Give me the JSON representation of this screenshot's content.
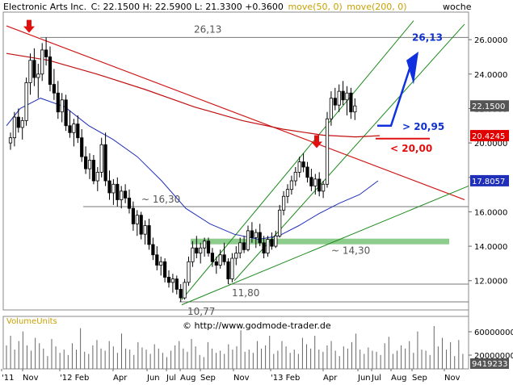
{
  "header": {
    "symbol": "Electronic Arts Inc.",
    "ohlc": "C: 22.1500  H: 22.5900  L: 21.3300 +0.3600",
    "ma50": "move(50, 0)",
    "ma200": "move(200, 0)",
    "interval": "woche"
  },
  "watermark": "© http://www.godmode-trader.de",
  "volume_title": "VolumeUnits",
  "colors": {
    "candle_up": "#ffffff",
    "candle_down": "#000000",
    "ma50": "#1f2fb8",
    "ma200": "#c01010",
    "trendline_red": "#d01818",
    "channel": "#1a8a1a",
    "support_zone": "#7fc77f",
    "arrow_down": "#e01010",
    "arrow_up": "#1030e0",
    "target_blue": "#1030d0",
    "target_red": "#e01010"
  },
  "chart_data": {
    "type": "candlestick",
    "title": "Electronic Arts Inc.",
    "interval": "woche",
    "x_ticks": [
      "'11",
      "Nov",
      "'12 Feb",
      "Apr",
      "Jun",
      "Jul",
      "Aug",
      "Sep",
      "Nov",
      "'13 Feb",
      "Apr",
      "Jun",
      "Jul",
      "Aug",
      "Sep",
      "Nov"
    ],
    "y_ticks": [
      "26.0000",
      "24.0000",
      "22.0000",
      "20.0000",
      "18.0000",
      "16.0000",
      "14.0000",
      "12.0000"
    ],
    "ylim": [
      10.3,
      27.6
    ],
    "last_price": "22.1500",
    "ma200_value": "20.4245",
    "ma50_value": "17.8057",
    "levels": [
      {
        "label": "26,13",
        "value": 26.13
      },
      {
        "label": "~ 16,30",
        "value": 16.3
      },
      {
        "label": "~ 14,30",
        "value": 14.3
      },
      {
        "label": "11,80",
        "value": 11.8
      },
      {
        "label": "10,77",
        "value": 10.77
      }
    ],
    "targets": [
      {
        "label": "26,13",
        "value": 26.13,
        "color": "blue"
      },
      {
        "label": "> 20,95",
        "value": 20.95,
        "color": "blue"
      },
      {
        "label": "< 20,00",
        "value": 20.0,
        "color": "red"
      }
    ],
    "volume": {
      "y_ticks": [
        "60000000",
        "20000000"
      ],
      "last_value": "9419233",
      "values": [
        22,
        31,
        18,
        26,
        35,
        22,
        17,
        29,
        24,
        19,
        12,
        28,
        21,
        15,
        18,
        13,
        24,
        18,
        38,
        16,
        14,
        22,
        27,
        19,
        17,
        26,
        21,
        15,
        33,
        19,
        18,
        13,
        25,
        20,
        18,
        14,
        23,
        19,
        15,
        11,
        17,
        22,
        26,
        19,
        16,
        28,
        21,
        13,
        11,
        25,
        19,
        15,
        17,
        14,
        23,
        18,
        21,
        36,
        16,
        18,
        15,
        26,
        19,
        22,
        31,
        14,
        17,
        26,
        21,
        15,
        18,
        14,
        29,
        23,
        19,
        31,
        18,
        16,
        22,
        26,
        17,
        12,
        21,
        19,
        25,
        33,
        18,
        14,
        20,
        17,
        16,
        13,
        24,
        30,
        14,
        17,
        22,
        19,
        26,
        15,
        35,
        18,
        17,
        13,
        40,
        21,
        29,
        18,
        25,
        12,
        27,
        14
      ]
    },
    "weekly": [
      {
        "o": 20.0,
        "h": 20.6,
        "l": 19.6,
        "c": 20.3
      },
      {
        "o": 20.3,
        "h": 21.8,
        "l": 19.8,
        "c": 21.5
      },
      {
        "o": 21.5,
        "h": 22.0,
        "l": 20.6,
        "c": 20.9
      },
      {
        "o": 20.9,
        "h": 21.5,
        "l": 20.2,
        "c": 21.3
      },
      {
        "o": 21.3,
        "h": 23.8,
        "l": 21.0,
        "c": 23.5
      },
      {
        "o": 23.5,
        "h": 25.2,
        "l": 22.8,
        "c": 24.8
      },
      {
        "o": 24.8,
        "h": 25.5,
        "l": 23.3,
        "c": 23.8
      },
      {
        "o": 23.8,
        "h": 24.6,
        "l": 22.6,
        "c": 24.0
      },
      {
        "o": 24.0,
        "h": 25.8,
        "l": 23.6,
        "c": 25.4
      },
      {
        "o": 25.4,
        "h": 26.13,
        "l": 24.5,
        "c": 25.0
      },
      {
        "o": 25.0,
        "h": 25.6,
        "l": 23.0,
        "c": 23.4
      },
      {
        "o": 23.4,
        "h": 24.3,
        "l": 22.5,
        "c": 22.9
      },
      {
        "o": 22.9,
        "h": 23.6,
        "l": 21.4,
        "c": 21.8
      },
      {
        "o": 21.8,
        "h": 22.9,
        "l": 21.2,
        "c": 22.5
      },
      {
        "o": 22.5,
        "h": 22.8,
        "l": 20.7,
        "c": 21.0
      },
      {
        "o": 21.0,
        "h": 21.9,
        "l": 20.3,
        "c": 20.6
      },
      {
        "o": 20.6,
        "h": 21.4,
        "l": 19.8,
        "c": 21.1
      },
      {
        "o": 21.1,
        "h": 21.6,
        "l": 20.0,
        "c": 20.3
      },
      {
        "o": 20.3,
        "h": 20.8,
        "l": 18.9,
        "c": 19.2
      },
      {
        "o": 19.2,
        "h": 19.8,
        "l": 18.2,
        "c": 18.5
      },
      {
        "o": 18.5,
        "h": 19.4,
        "l": 17.9,
        "c": 19.0
      },
      {
        "o": 19.0,
        "h": 19.3,
        "l": 17.6,
        "c": 17.8
      },
      {
        "o": 17.8,
        "h": 18.6,
        "l": 17.2,
        "c": 18.3
      },
      {
        "o": 18.3,
        "h": 20.3,
        "l": 18.0,
        "c": 19.9
      },
      {
        "o": 19.9,
        "h": 20.6,
        "l": 17.5,
        "c": 17.8
      },
      {
        "o": 17.8,
        "h": 18.4,
        "l": 16.7,
        "c": 17.1
      },
      {
        "o": 17.1,
        "h": 17.9,
        "l": 16.4,
        "c": 17.6
      },
      {
        "o": 17.6,
        "h": 18.0,
        "l": 16.3,
        "c": 16.7
      },
      {
        "o": 16.7,
        "h": 17.5,
        "l": 16.2,
        "c": 17.2
      },
      {
        "o": 17.2,
        "h": 17.6,
        "l": 16.5,
        "c": 16.8
      },
      {
        "o": 16.8,
        "h": 17.3,
        "l": 15.9,
        "c": 16.2
      },
      {
        "o": 16.2,
        "h": 16.6,
        "l": 14.9,
        "c": 15.3
      },
      {
        "o": 15.3,
        "h": 16.1,
        "l": 14.6,
        "c": 15.8
      },
      {
        "o": 15.8,
        "h": 16.0,
        "l": 14.4,
        "c": 14.7
      },
      {
        "o": 14.7,
        "h": 15.5,
        "l": 14.1,
        "c": 15.2
      },
      {
        "o": 15.2,
        "h": 15.6,
        "l": 13.8,
        "c": 14.1
      },
      {
        "o": 14.1,
        "h": 14.5,
        "l": 13.2,
        "c": 13.5
      },
      {
        "o": 13.5,
        "h": 14.0,
        "l": 12.6,
        "c": 12.9
      },
      {
        "o": 12.9,
        "h": 13.4,
        "l": 12.3,
        "c": 13.1
      },
      {
        "o": 13.1,
        "h": 13.3,
        "l": 11.9,
        "c": 12.2
      },
      {
        "o": 12.2,
        "h": 12.6,
        "l": 11.6,
        "c": 11.9
      },
      {
        "o": 11.9,
        "h": 12.4,
        "l": 11.3,
        "c": 12.1
      },
      {
        "o": 12.1,
        "h": 12.3,
        "l": 11.2,
        "c": 11.5
      },
      {
        "o": 11.5,
        "h": 11.8,
        "l": 10.77,
        "c": 11.0
      },
      {
        "o": 11.0,
        "h": 12.1,
        "l": 10.9,
        "c": 11.9
      },
      {
        "o": 11.9,
        "h": 13.4,
        "l": 11.7,
        "c": 13.1
      },
      {
        "o": 13.1,
        "h": 14.3,
        "l": 12.8,
        "c": 13.9
      },
      {
        "o": 13.9,
        "h": 14.6,
        "l": 13.3,
        "c": 13.6
      },
      {
        "o": 13.6,
        "h": 14.2,
        "l": 13.0,
        "c": 13.9
      },
      {
        "o": 13.9,
        "h": 14.5,
        "l": 13.4,
        "c": 14.3
      },
      {
        "o": 14.3,
        "h": 14.5,
        "l": 13.4,
        "c": 13.6
      },
      {
        "o": 13.6,
        "h": 13.9,
        "l": 12.8,
        "c": 13.1
      },
      {
        "o": 13.1,
        "h": 13.4,
        "l": 12.4,
        "c": 12.9
      },
      {
        "o": 12.9,
        "h": 13.8,
        "l": 12.7,
        "c": 13.5
      },
      {
        "o": 13.5,
        "h": 14.2,
        "l": 12.9,
        "c": 13.1
      },
      {
        "o": 13.1,
        "h": 13.3,
        "l": 11.8,
        "c": 12.1
      },
      {
        "o": 12.1,
        "h": 13.6,
        "l": 11.9,
        "c": 13.3
      },
      {
        "o": 13.3,
        "h": 14.0,
        "l": 12.9,
        "c": 13.6
      },
      {
        "o": 13.6,
        "h": 14.5,
        "l": 13.3,
        "c": 14.2
      },
      {
        "o": 14.2,
        "h": 14.6,
        "l": 13.6,
        "c": 13.8
      },
      {
        "o": 13.8,
        "h": 15.2,
        "l": 13.7,
        "c": 14.9
      },
      {
        "o": 14.9,
        "h": 15.4,
        "l": 14.2,
        "c": 14.5
      },
      {
        "o": 14.5,
        "h": 15.0,
        "l": 13.9,
        "c": 14.8
      },
      {
        "o": 14.8,
        "h": 15.3,
        "l": 14.0,
        "c": 14.2
      },
      {
        "o": 14.2,
        "h": 14.6,
        "l": 13.3,
        "c": 13.6
      },
      {
        "o": 13.6,
        "h": 14.6,
        "l": 13.4,
        "c": 14.4
      },
      {
        "o": 14.4,
        "h": 14.8,
        "l": 13.8,
        "c": 14.0
      },
      {
        "o": 14.0,
        "h": 14.9,
        "l": 13.9,
        "c": 14.6
      },
      {
        "o": 14.6,
        "h": 16.4,
        "l": 14.5,
        "c": 16.1
      },
      {
        "o": 16.1,
        "h": 17.2,
        "l": 15.8,
        "c": 16.9
      },
      {
        "o": 16.9,
        "h": 17.6,
        "l": 16.5,
        "c": 17.3
      },
      {
        "o": 17.3,
        "h": 18.1,
        "l": 17.0,
        "c": 17.8
      },
      {
        "o": 17.8,
        "h": 18.6,
        "l": 17.5,
        "c": 18.3
      },
      {
        "o": 18.3,
        "h": 19.2,
        "l": 18.0,
        "c": 18.9
      },
      {
        "o": 18.9,
        "h": 19.4,
        "l": 18.3,
        "c": 18.6
      },
      {
        "o": 18.6,
        "h": 18.9,
        "l": 17.7,
        "c": 18.0
      },
      {
        "o": 18.0,
        "h": 18.5,
        "l": 17.2,
        "c": 17.5
      },
      {
        "o": 17.5,
        "h": 18.2,
        "l": 17.0,
        "c": 17.9
      },
      {
        "o": 17.9,
        "h": 18.3,
        "l": 16.9,
        "c": 17.2
      },
      {
        "o": 17.2,
        "h": 17.8,
        "l": 16.8,
        "c": 17.6
      },
      {
        "o": 17.6,
        "h": 21.8,
        "l": 17.4,
        "c": 21.4
      },
      {
        "o": 21.4,
        "h": 23.0,
        "l": 21.0,
        "c": 22.6
      },
      {
        "o": 22.6,
        "h": 23.2,
        "l": 21.9,
        "c": 22.2
      },
      {
        "o": 22.2,
        "h": 23.4,
        "l": 21.8,
        "c": 23.0
      },
      {
        "o": 23.0,
        "h": 23.6,
        "l": 22.2,
        "c": 22.5
      },
      {
        "o": 22.5,
        "h": 23.3,
        "l": 21.6,
        "c": 22.9
      },
      {
        "o": 22.9,
        "h": 23.2,
        "l": 21.4,
        "c": 21.8
      },
      {
        "o": 21.8,
        "h": 22.59,
        "l": 21.33,
        "c": 22.15
      }
    ]
  }
}
